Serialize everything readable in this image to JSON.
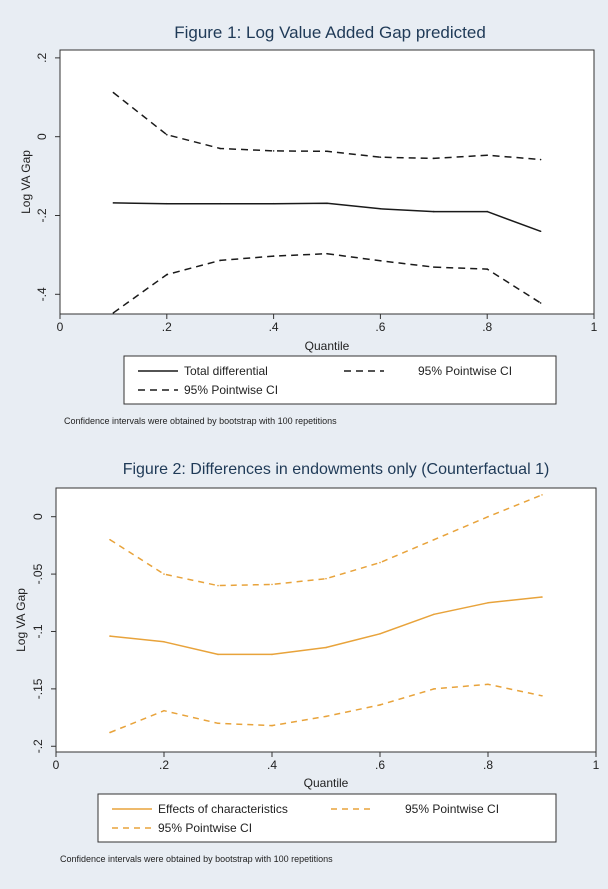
{
  "chart_data": [
    {
      "type": "line",
      "title": "Figure 1: Log Value Added Gap predicted",
      "xlabel": "Quantile",
      "ylabel": "Log VA Gap",
      "xlim": [
        0,
        1
      ],
      "ylim": [
        -0.45,
        0.22
      ],
      "x_ticks": [
        0,
        0.2,
        0.4,
        0.6,
        0.8,
        1
      ],
      "x_tick_labels": [
        "0",
        ".2",
        ".4",
        ".6",
        ".8",
        "1"
      ],
      "y_ticks": [
        0.2,
        0,
        -0.2,
        -0.4
      ],
      "y_tick_labels": [
        ".2",
        "0",
        "-.2",
        "-.4"
      ],
      "grid": false,
      "legend_position": "bottom",
      "line_color": "#1a1a1a",
      "x": [
        0.1,
        0.2,
        0.3,
        0.4,
        0.5,
        0.6,
        0.7,
        0.8,
        0.9
      ],
      "series": [
        {
          "name": "Total differential",
          "style": "solid",
          "values": [
            -0.168,
            -0.17,
            -0.17,
            -0.17,
            -0.169,
            -0.183,
            -0.19,
            -0.19,
            -0.24
          ]
        },
        {
          "name": "95% Pointwise CI",
          "style": "dashed",
          "values": [
            0.112,
            0.005,
            -0.03,
            -0.036,
            -0.037,
            -0.052,
            -0.055,
            -0.047,
            -0.058
          ]
        },
        {
          "name": "95% Pointwise CI",
          "style": "dashed",
          "values": [
            -0.447,
            -0.35,
            -0.314,
            -0.303,
            -0.297,
            -0.315,
            -0.331,
            -0.336,
            -0.422
          ]
        }
      ],
      "note": "Confidence intervals were obtained by bootstrap with 100 repetitions"
    },
    {
      "type": "line",
      "title": "Figure 2: Differences in endowments only (Counterfactual 1)",
      "xlabel": "Quantile",
      "ylabel": "Log VA Gap",
      "xlim": [
        0,
        1
      ],
      "ylim": [
        -0.205,
        0.025
      ],
      "x_ticks": [
        0,
        0.2,
        0.4,
        0.6,
        0.8,
        1
      ],
      "x_tick_labels": [
        "0",
        ".2",
        ".4",
        ".6",
        ".8",
        "1"
      ],
      "y_ticks": [
        0,
        -0.05,
        -0.1,
        -0.15,
        -0.2
      ],
      "y_tick_labels": [
        "0",
        "-.05",
        "-.1",
        "-.15",
        "-.2"
      ],
      "grid": false,
      "legend_position": "bottom",
      "line_color": "#e8a33b",
      "x": [
        0.1,
        0.2,
        0.3,
        0.4,
        0.5,
        0.6,
        0.7,
        0.8,
        0.9
      ],
      "series": [
        {
          "name": "Effects of characteristics",
          "style": "solid",
          "values": [
            -0.104,
            -0.109,
            -0.12,
            -0.12,
            -0.114,
            -0.102,
            -0.085,
            -0.075,
            -0.07
          ]
        },
        {
          "name": "95% Pointwise CI",
          "style": "dashed",
          "values": [
            -0.02,
            -0.05,
            -0.06,
            -0.059,
            -0.054,
            -0.04,
            -0.02,
            0.0,
            0.019
          ]
        },
        {
          "name": "95% Pointwise CI",
          "style": "dashed",
          "values": [
            -0.188,
            -0.169,
            -0.18,
            -0.182,
            -0.174,
            -0.164,
            -0.15,
            -0.146,
            -0.156
          ]
        }
      ],
      "note": "Confidence intervals were obtained by bootstrap with 100 repetitions"
    }
  ]
}
